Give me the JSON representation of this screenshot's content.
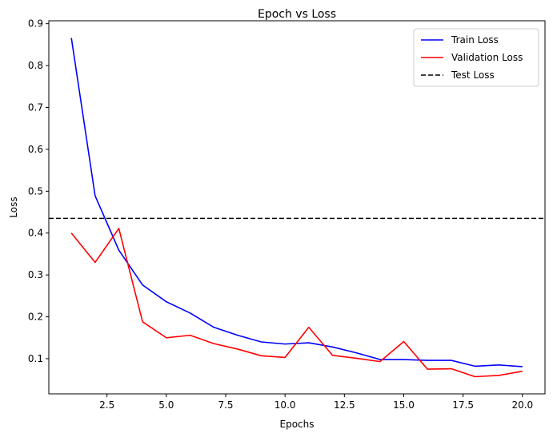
{
  "chart_data": {
    "type": "line",
    "title": "Epoch vs Loss",
    "xlabel": "Epochs",
    "ylabel": "Loss",
    "x": [
      1,
      2,
      3,
      4,
      5,
      6,
      7,
      8,
      9,
      10,
      11,
      12,
      13,
      14,
      15,
      16,
      17,
      18,
      19,
      20
    ],
    "xlim": [
      0.05,
      20.95
    ],
    "ylim": [
      0.016,
      0.907
    ],
    "xticks": [
      2.5,
      5.0,
      7.5,
      10.0,
      12.5,
      15.0,
      17.5,
      20.0
    ],
    "xtick_labels": [
      "2.5",
      "5.0",
      "7.5",
      "10.0",
      "12.5",
      "15.0",
      "17.5",
      "20.0"
    ],
    "yticks": [
      0.1,
      0.2,
      0.3,
      0.4,
      0.5,
      0.6,
      0.7,
      0.8,
      0.9
    ],
    "ytick_labels": [
      "0.1",
      "0.2",
      "0.3",
      "0.4",
      "0.5",
      "0.6",
      "0.7",
      "0.8",
      "0.9"
    ],
    "grid": false,
    "legend_position": "top-right",
    "series": [
      {
        "name": "Train Loss",
        "color": "#0000ff",
        "style": "solid",
        "values": [
          0.866,
          0.489,
          0.359,
          0.276,
          0.236,
          0.209,
          0.175,
          0.156,
          0.14,
          0.135,
          0.138,
          0.128,
          0.114,
          0.098,
          0.098,
          0.096,
          0.096,
          0.082,
          0.085,
          0.081
        ]
      },
      {
        "name": "Validation Loss",
        "color": "#ff0000",
        "style": "solid",
        "values": [
          0.4,
          0.33,
          0.411,
          0.188,
          0.15,
          0.156,
          0.136,
          0.123,
          0.107,
          0.103,
          0.175,
          0.108,
          0.101,
          0.093,
          0.141,
          0.075,
          0.076,
          0.057,
          0.06,
          0.07
        ]
      }
    ],
    "hlines": [
      {
        "name": "Test Loss",
        "color": "#000000",
        "style": "dashed",
        "value": 0.435
      }
    ]
  }
}
